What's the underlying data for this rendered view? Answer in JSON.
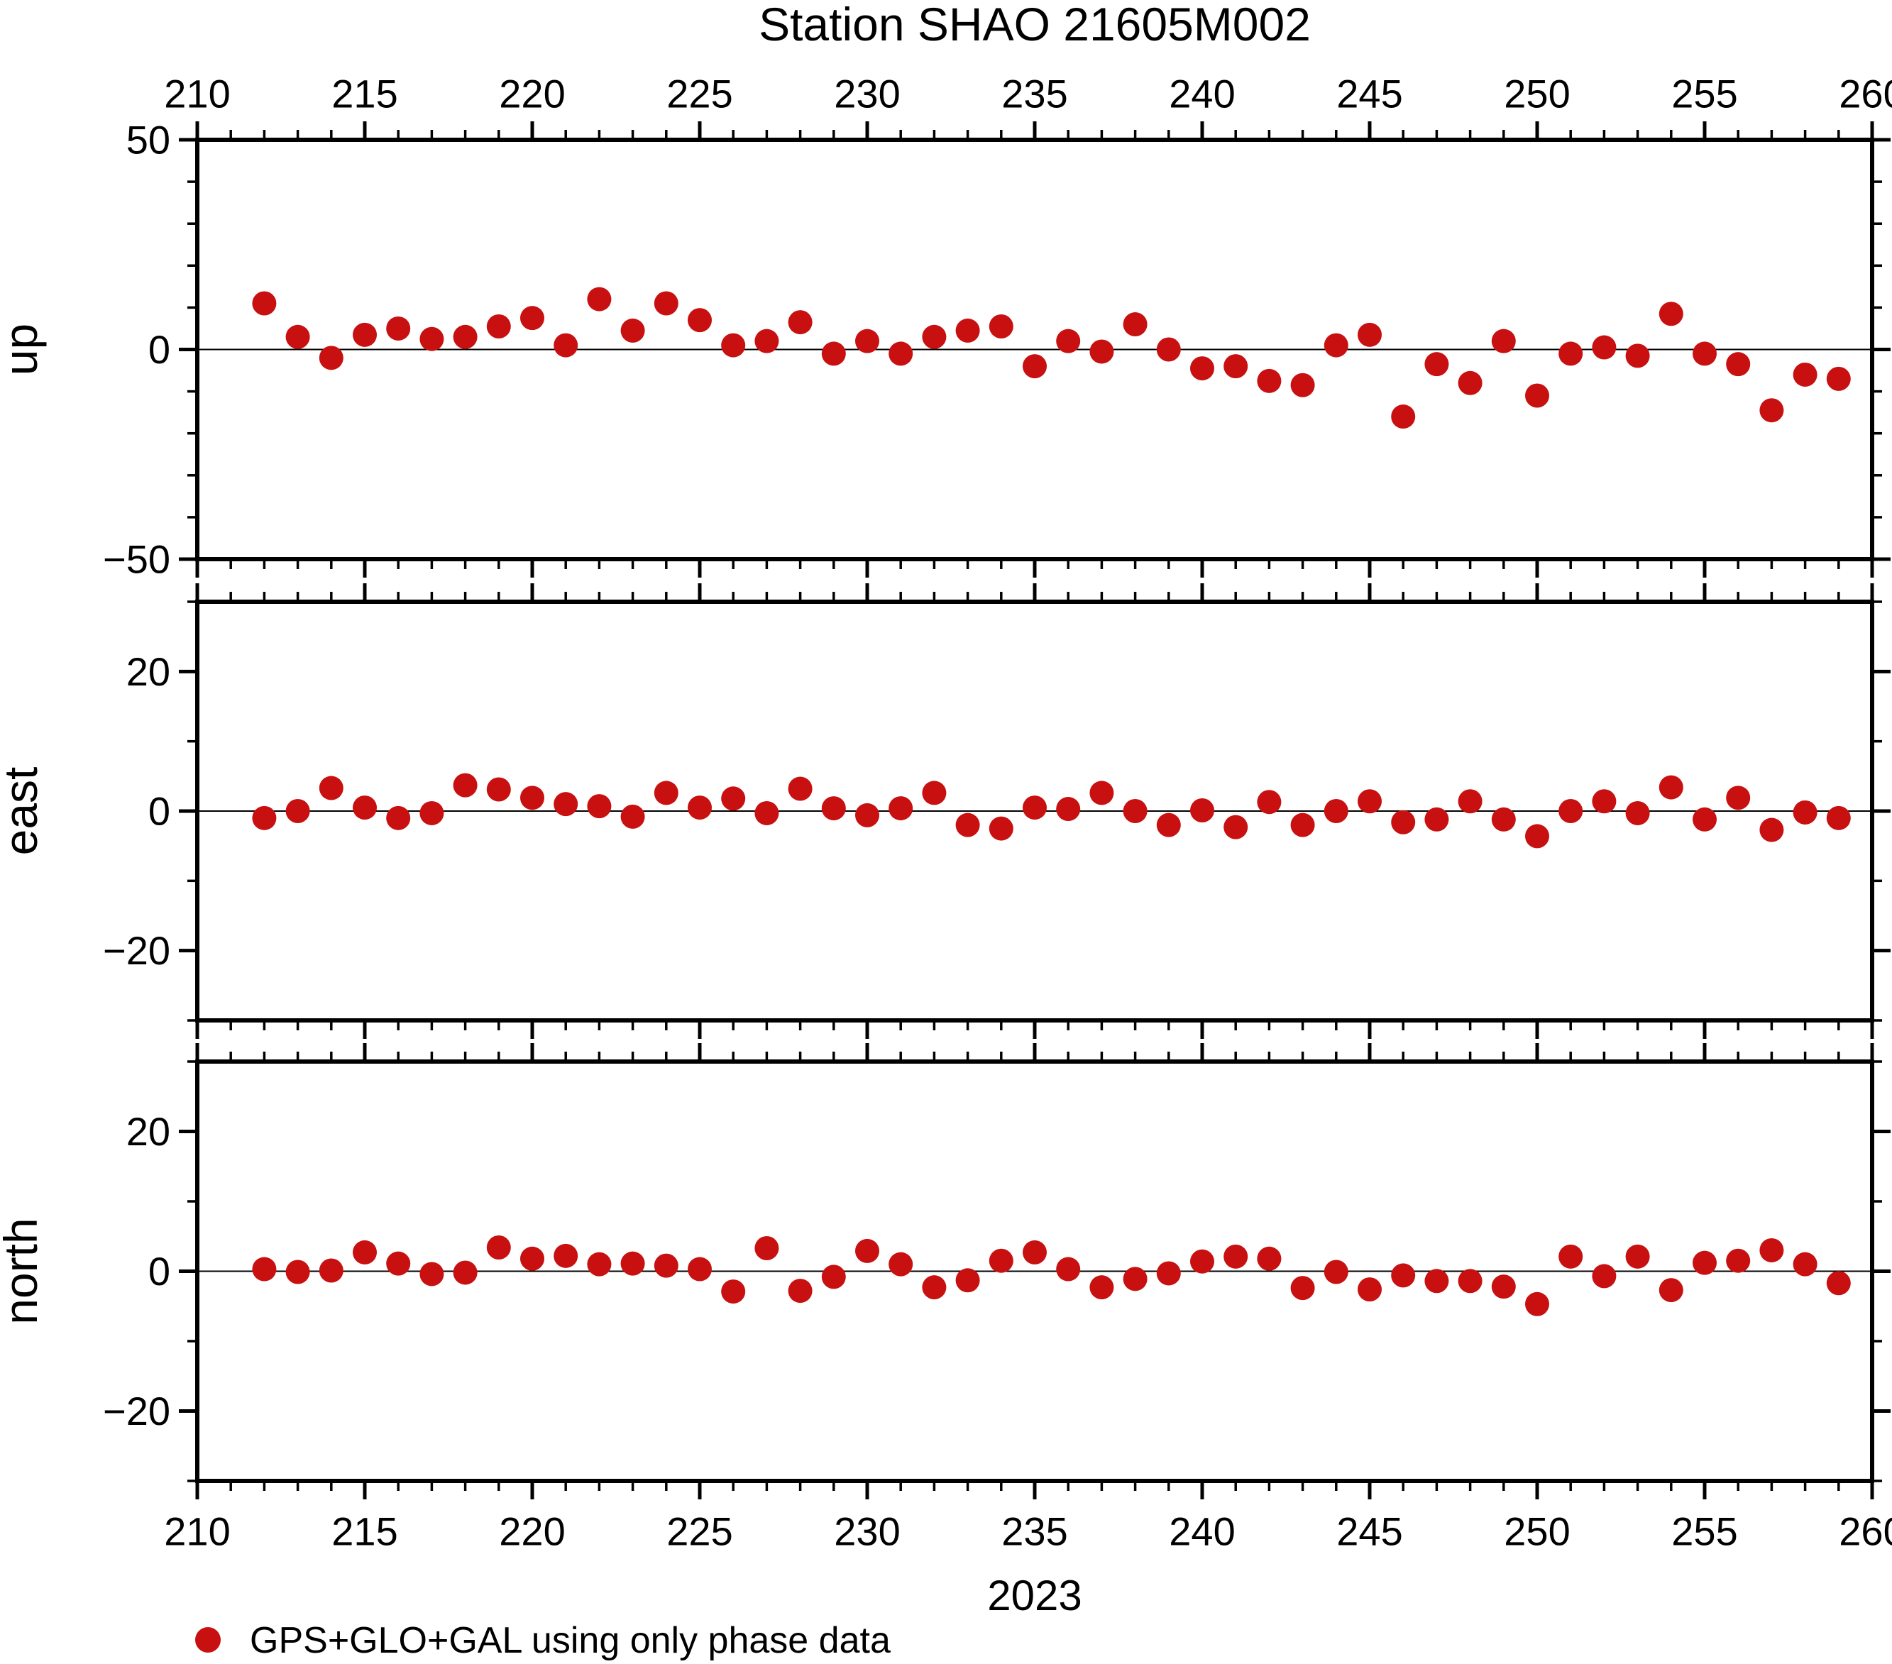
{
  "title": "Station SHAO 21605M002",
  "chart_data": {
    "type": "scatter",
    "title": "Station SHAO 21605M002",
    "year_label": "2023",
    "legend": {
      "label": "GPS+GLO+GAL using only phase data",
      "marker_color": "#c81010"
    },
    "marker": {
      "shape": "circle",
      "color": "#c81010",
      "radius_px": 17
    },
    "x": {
      "range": [
        210,
        260
      ],
      "major_tick_step": 5,
      "minor_tick_step": 1,
      "tick_labels": [
        210,
        215,
        220,
        225,
        230,
        235,
        240,
        245,
        250,
        255,
        260
      ]
    },
    "days": [
      212,
      213,
      214,
      215,
      216,
      217,
      218,
      219,
      220,
      221,
      222,
      223,
      224,
      225,
      226,
      227,
      228,
      229,
      230,
      231,
      232,
      233,
      234,
      235,
      236,
      237,
      238,
      239,
      240,
      241,
      242,
      243,
      244,
      245,
      246,
      247,
      248,
      249,
      250,
      251,
      252,
      253,
      254,
      255,
      256,
      257,
      258,
      259
    ],
    "panels": [
      {
        "name": "up",
        "ylabel": "up",
        "ylim": [
          -50,
          50
        ],
        "ytick_labels": [
          50,
          0,
          -50
        ],
        "y_annotation_step": 50,
        "y_minor_step": 10,
        "values": [
          11,
          3,
          -2,
          3.5,
          5,
          2.5,
          3,
          5.5,
          7.5,
          1,
          12,
          4.5,
          11,
          7,
          1,
          2,
          6.5,
          -1,
          2,
          -1,
          3,
          4.5,
          5.5,
          -4,
          2,
          -0.5,
          6,
          0,
          -4.5,
          -4,
          -7.5,
          -8.5,
          1,
          3.5,
          -16,
          -3.5,
          -8,
          2,
          -11,
          -1,
          0.5,
          -1.5,
          8.5,
          -1,
          -3.5,
          -14.5,
          -6,
          -7
        ]
      },
      {
        "name": "east",
        "ylabel": "east",
        "ylim": [
          -30,
          30
        ],
        "ytick_labels": [
          20,
          0,
          -20
        ],
        "y_annotation_step": 20,
        "y_minor_step": 10,
        "values": [
          -1,
          0,
          3.3,
          0.5,
          -1,
          -0.3,
          3.7,
          3.1,
          1.9,
          1,
          0.7,
          -0.8,
          2.6,
          0.5,
          1.8,
          -0.3,
          3.2,
          0.4,
          -0.6,
          0.4,
          2.6,
          -2,
          -2.5,
          0.5,
          0.3,
          2.6,
          0,
          -2,
          0.1,
          -2.3,
          1.3,
          -2,
          0,
          1.4,
          -1.6,
          -1.2,
          1.4,
          -1.2,
          -3.6,
          0,
          1.4,
          -0.3,
          3.4,
          -1.2,
          1.9,
          -2.7,
          -0.2,
          -1
        ]
      },
      {
        "name": "north",
        "ylabel": "north",
        "ylim": [
          -30,
          30
        ],
        "ytick_labels": [
          20,
          0,
          -20
        ],
        "y_annotation_step": 20,
        "y_minor_step": 10,
        "values": [
          0.3,
          -0.1,
          0.1,
          2.7,
          1.1,
          -0.4,
          -0.2,
          3.4,
          1.8,
          2.2,
          1,
          1.1,
          0.8,
          0.3,
          -2.9,
          3.3,
          -2.8,
          -0.8,
          2.9,
          1,
          -2.3,
          -1.3,
          1.5,
          2.7,
          0.3,
          -2.3,
          -1.1,
          -0.3,
          1.4,
          2.1,
          1.8,
          -2.4,
          -0.1,
          -2.6,
          -0.6,
          -1.4,
          -1.4,
          -2.2,
          -4.7,
          2.1,
          -0.7,
          2.1,
          -2.7,
          1.2,
          1.5,
          3,
          1,
          -1.7
        ]
      }
    ]
  }
}
